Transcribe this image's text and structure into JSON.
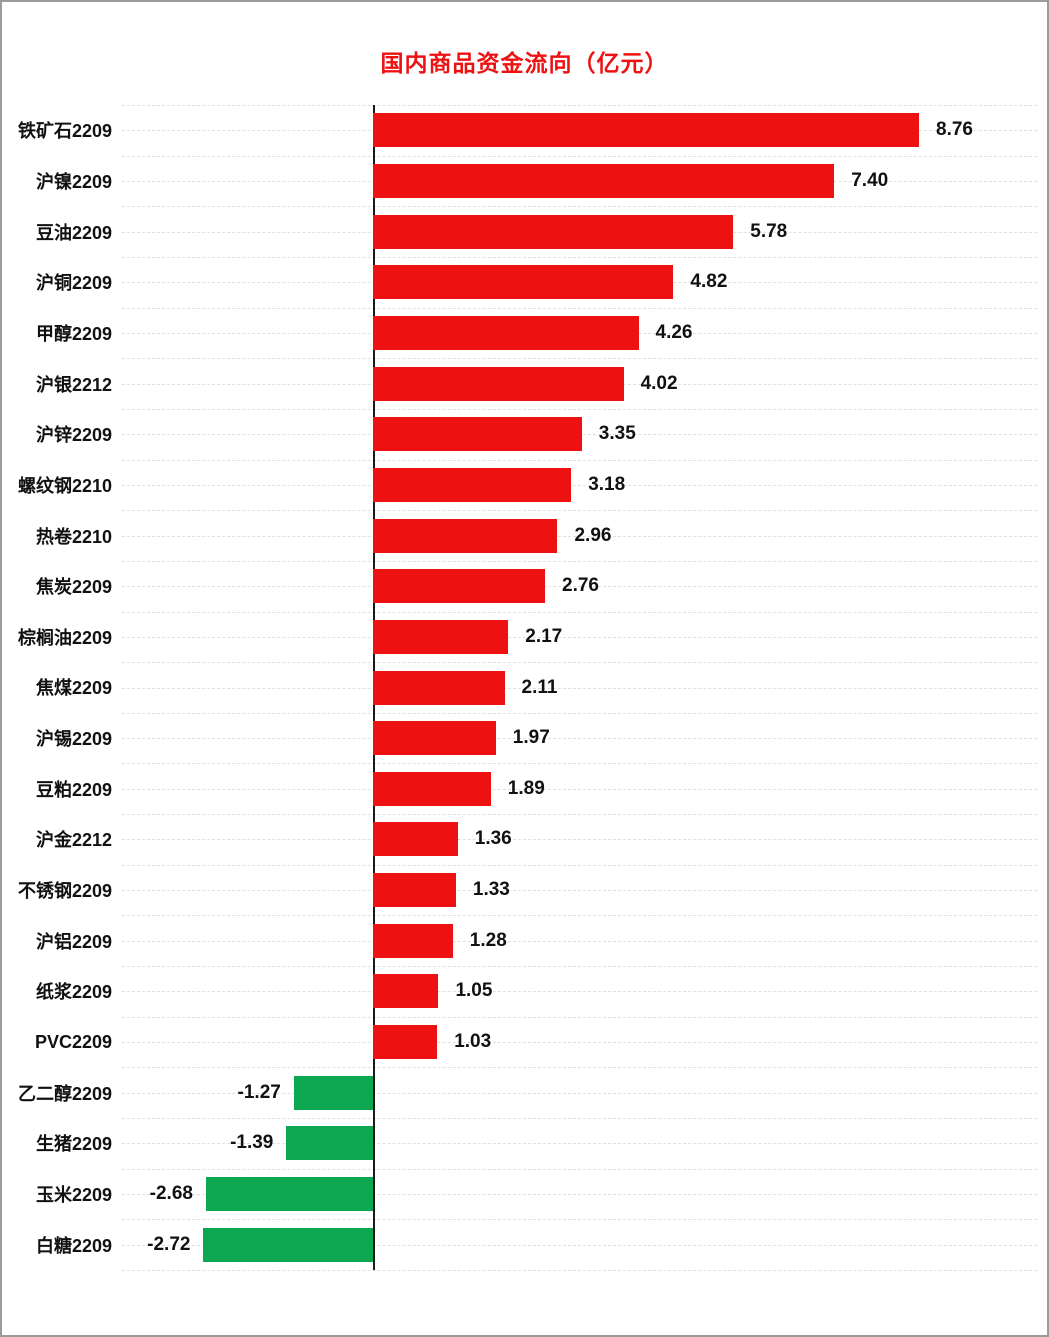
{
  "title": {
    "text": "国内商品资金流向（亿元）",
    "color": "#ee1111"
  },
  "chart_data": {
    "type": "bar",
    "orientation": "horizontal",
    "title": "国内商品资金流向（亿元）",
    "categories": [
      "铁矿石2209",
      "沪镍2209",
      "豆油2209",
      "沪铜2209",
      "甲醇2209",
      "沪银2212",
      "沪锌2209",
      "螺纹钢2210",
      "热卷2210",
      "焦炭2209",
      "棕榈油2209",
      "焦煤2209",
      "沪锡2209",
      "豆粕2209",
      "沪金2212",
      "不锈钢2209",
      "沪铝2209",
      "纸浆2209",
      "PVC2209",
      "乙二醇2209",
      "生猪2209",
      "玉米2209",
      "白糖2209"
    ],
    "values": [
      8.76,
      7.4,
      5.78,
      4.82,
      4.26,
      4.02,
      3.35,
      3.18,
      2.96,
      2.76,
      2.17,
      2.11,
      1.97,
      1.89,
      1.36,
      1.33,
      1.28,
      1.05,
      1.03,
      -1.27,
      -1.39,
      -2.68,
      -2.72
    ],
    "positive_color": "#ee1111",
    "negative_color": "#0ca750",
    "grid": "horizontal-dashed",
    "gridline_color": "#e0e0e0",
    "axis_line_color": "#1a1a1a",
    "xlim": [
      -4.05,
      10.65
    ],
    "xlabel": "",
    "ylabel": "",
    "legend": "none"
  }
}
